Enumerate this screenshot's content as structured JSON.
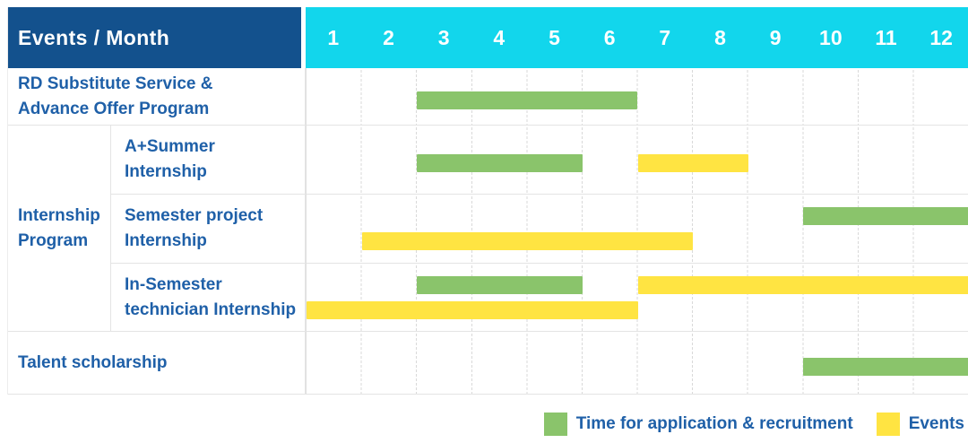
{
  "palette": {
    "header_navy": "#13518D",
    "header_cyan": "#12D6EC",
    "bar_green": "#8AC46B",
    "bar_yellow": "#FFE442",
    "label_blue": "#1F60A8",
    "grid_line": "#E4E4E4"
  },
  "header": {
    "title": "Events / Month",
    "months": [
      "1",
      "2",
      "3",
      "4",
      "5",
      "6",
      "7",
      "8",
      "9",
      "10",
      "11",
      "12"
    ]
  },
  "legend": [
    {
      "color": "green",
      "label": "Time for application & recruitment"
    },
    {
      "color": "yellow",
      "label": "Events"
    }
  ],
  "chart_data": {
    "type": "gantt",
    "title": "Events / Month",
    "x_axis": {
      "label": "Month",
      "range": [
        1,
        12
      ]
    },
    "series_legend": {
      "green": "Time for application & recruitment",
      "yellow": "Events"
    },
    "rows": [
      {
        "group": "",
        "label": "RD Substitute Service &\nAdvance Offer Program",
        "bars": [
          {
            "series": "Time for application & recruitment",
            "color": "green",
            "start_month": 3,
            "end_month": 6,
            "lane": "mid"
          }
        ]
      },
      {
        "group": "Internship\nProgram",
        "label": "A+Summer\nInternship",
        "bars": [
          {
            "series": "Time for application & recruitment",
            "color": "green",
            "start_month": 3,
            "end_month": 5,
            "lane": "mid"
          },
          {
            "series": "Events",
            "color": "yellow",
            "start_month": 7,
            "end_month": 8,
            "lane": "mid"
          }
        ]
      },
      {
        "group": "Internship\nProgram",
        "label": "Semester project\nInternship",
        "bars": [
          {
            "series": "Time for application & recruitment",
            "color": "green",
            "start_month": 10,
            "end_month": 12,
            "lane": "upper"
          },
          {
            "series": "Events",
            "color": "yellow",
            "start_month": 2,
            "end_month": 7,
            "lane": "lower"
          }
        ]
      },
      {
        "group": "Internship\nProgram",
        "label": "In-Semester\ntechnician Internship",
        "bars": [
          {
            "series": "Time for application & recruitment",
            "color": "green",
            "start_month": 3,
            "end_month": 5,
            "lane": "upper"
          },
          {
            "series": "Events",
            "color": "yellow",
            "start_month": 7,
            "end_month": 12,
            "lane": "upper"
          },
          {
            "series": "Events",
            "color": "yellow",
            "start_month": 1,
            "end_month": 6,
            "lane": "lower"
          }
        ]
      },
      {
        "group": "",
        "label": "Talent scholarship",
        "bars": [
          {
            "series": "Time for application & recruitment",
            "color": "green",
            "start_month": 10,
            "end_month": 12,
            "lane": "mid"
          }
        ]
      }
    ]
  }
}
